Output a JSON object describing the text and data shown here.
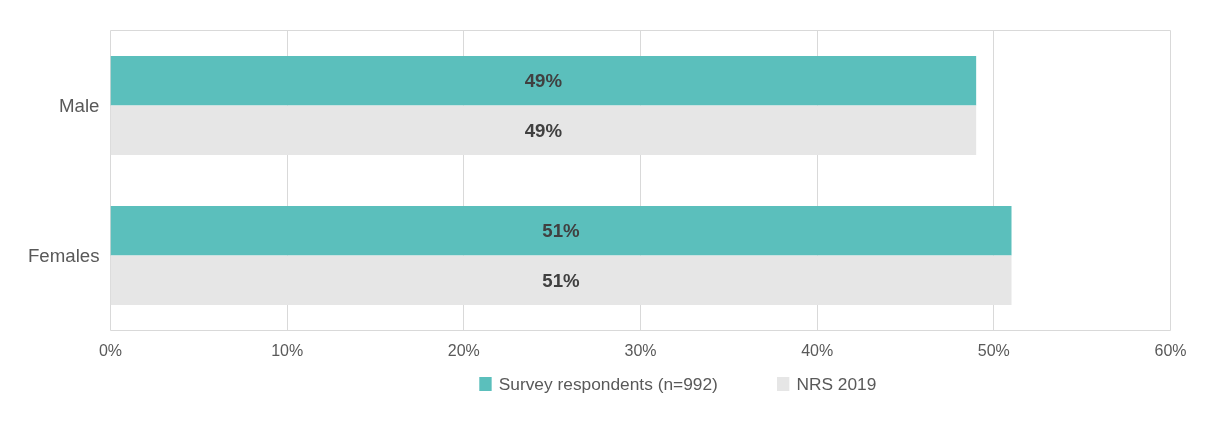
{
  "chart_data": {
    "type": "bar",
    "orientation": "horizontal",
    "categories": [
      "Male",
      "Females"
    ],
    "series": [
      {
        "name": "Survey respondents (n=992)",
        "color": "#5bbfbc",
        "values": [
          49,
          51
        ],
        "value_labels": [
          "49%",
          "51%"
        ]
      },
      {
        "name": "NRS 2019",
        "color": "#e6e6e6",
        "values": [
          49,
          51
        ],
        "value_labels": [
          "49%",
          "51%"
        ]
      }
    ],
    "xlim": [
      0,
      60
    ],
    "xticks": [
      {
        "value": 0,
        "label": "0%"
      },
      {
        "value": 10,
        "label": "10%"
      },
      {
        "value": 20,
        "label": "20%"
      },
      {
        "value": 30,
        "label": "30%"
      },
      {
        "value": 40,
        "label": "40%"
      },
      {
        "value": 50,
        "label": "50%"
      },
      {
        "value": 60,
        "label": "60%"
      }
    ],
    "grid": "x",
    "legend": "bottom"
  }
}
